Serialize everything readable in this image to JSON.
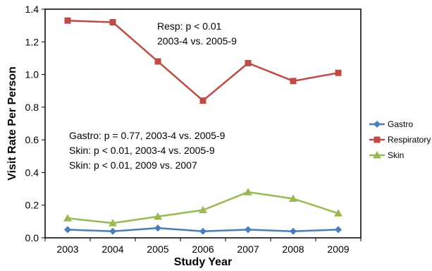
{
  "chart_data": {
    "type": "line",
    "title": "",
    "xlabel": "Study Year",
    "ylabel": "Visit Rate Per Person",
    "categories": [
      "2003",
      "2004",
      "2005",
      "2006",
      "2007",
      "2008",
      "2009"
    ],
    "ylim": [
      0,
      1.4
    ],
    "yticks": [
      "0.0",
      "0.2",
      "0.4",
      "0.6",
      "0.8",
      "1.0",
      "1.2",
      "1.4"
    ],
    "grid": false,
    "legend_position": "right",
    "series": [
      {
        "name": "Gastro",
        "color": "#4A7EBB",
        "marker": "diamond",
        "values": [
          0.05,
          0.04,
          0.06,
          0.04,
          0.05,
          0.04,
          0.05
        ]
      },
      {
        "name": "Respiratory",
        "color": "#BE4B48",
        "marker": "square",
        "values": [
          1.33,
          1.32,
          1.08,
          0.84,
          1.07,
          0.96,
          1.01
        ]
      },
      {
        "name": "Skin",
        "color": "#98B954",
        "marker": "triangle",
        "values": [
          0.12,
          0.09,
          0.13,
          0.17,
          0.28,
          0.24,
          0.15
        ]
      }
    ],
    "annotations": {
      "resp": [
        "Resp:  p < 0.01",
        "2003-4 vs. 2005-9"
      ],
      "other": [
        "Gastro: p = 0.77, 2003-4 vs. 2005-9",
        "Skin: p < 0.01, 2003-4 vs. 2005-9",
        "Skin: p < 0.01, 2009 vs. 2007"
      ]
    }
  }
}
